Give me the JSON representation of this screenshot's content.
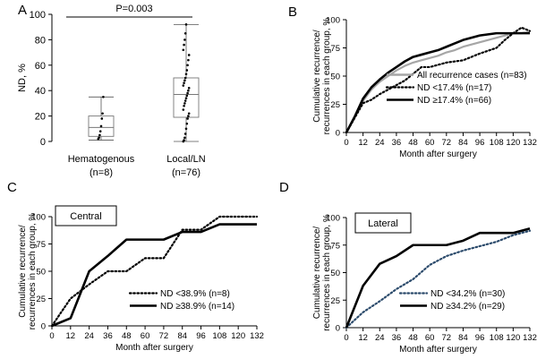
{
  "chart_data": [
    {
      "panel": "A",
      "type": "boxplot",
      "ylabel": "ND, %",
      "ylim": [
        0,
        100
      ],
      "yticks": [
        "0",
        "20",
        "40",
        "60",
        "80",
        "100"
      ],
      "annotation": "P=0.003",
      "groups": [
        {
          "label": "Hematogenous",
          "n_label": "(n=8)",
          "min": 1,
          "q1": 4,
          "median": 11,
          "q3": 20,
          "max": 35,
          "points": [
            2,
            3,
            5,
            8,
            12,
            18,
            22,
            35
          ]
        },
        {
          "label": "Local/LN",
          "n_label": "(n=76)",
          "min": 0,
          "q1": 19,
          "median": 37,
          "q3": 50,
          "max": 92,
          "points": [
            0,
            1,
            3,
            6,
            10,
            14,
            18,
            20,
            22,
            25,
            28,
            30,
            32,
            34,
            36,
            38,
            40,
            42,
            44,
            46,
            48,
            50,
            53,
            56,
            60,
            64,
            68,
            72,
            76,
            80,
            85,
            92
          ]
        }
      ]
    },
    {
      "panel": "B",
      "type": "line",
      "xlabel": "Month after surgery",
      "ylabel_lines": [
        "Cumulative recurrence/",
        "recurrences in each group, %"
      ],
      "xticks": [
        "0",
        "12",
        "24",
        "36",
        "48",
        "60",
        "72",
        "84",
        "96",
        "108",
        "120",
        "132"
      ],
      "yticks": [
        "0",
        "25",
        "50",
        "75",
        "100"
      ],
      "xlim": [
        0,
        132
      ],
      "ylim": [
        0,
        100
      ],
      "series": [
        {
          "name": "All recurrence cases (n=83)",
          "color": "#a6a6a6",
          "style": "solid",
          "x": [
            0,
            6,
            12,
            18,
            24,
            30,
            36,
            42,
            48,
            54,
            60,
            66,
            72,
            78,
            84,
            90,
            96,
            102,
            108,
            114,
            120,
            126,
            132
          ],
          "y": [
            0,
            14,
            28,
            38,
            45,
            50,
            55,
            59,
            62,
            64,
            66,
            68,
            71,
            73,
            76,
            78,
            80,
            82,
            84,
            86,
            88,
            88,
            89
          ]
        },
        {
          "name": "ND <17.4% (n=17)",
          "color": "#000000",
          "style": "dotted",
          "x": [
            0,
            12,
            18,
            24,
            30,
            36,
            42,
            48,
            54,
            60,
            66,
            72,
            84,
            96,
            108,
            114,
            120,
            126,
            132
          ],
          "y": [
            0,
            26,
            29,
            34,
            38,
            42,
            46,
            52,
            58,
            58,
            60,
            62,
            64,
            70,
            75,
            82,
            88,
            93,
            90
          ]
        },
        {
          "name": "ND ≥17.4% (n=66)",
          "color": "#000000",
          "style": "solid",
          "x": [
            0,
            6,
            12,
            18,
            24,
            30,
            36,
            42,
            48,
            54,
            60,
            66,
            72,
            78,
            84,
            90,
            96,
            102,
            108,
            114,
            120,
            126,
            132
          ],
          "y": [
            0,
            14,
            30,
            40,
            47,
            53,
            58,
            63,
            67,
            69,
            71,
            73,
            76,
            79,
            82,
            84,
            86,
            87,
            88,
            88,
            88,
            88,
            88
          ]
        }
      ]
    },
    {
      "panel": "C",
      "type": "line",
      "box_label": "Central",
      "xlabel": "Month after surgery",
      "ylabel_lines": [
        "Cumulative recurrence/",
        "recurrences in each group, %"
      ],
      "xticks": [
        "0",
        "12",
        "24",
        "36",
        "48",
        "60",
        "72",
        "84",
        "96",
        "108",
        "120",
        "132"
      ],
      "yticks": [
        "0",
        "25",
        "50",
        "75",
        "100"
      ],
      "xlim": [
        0,
        132
      ],
      "ylim": [
        0,
        100
      ],
      "series": [
        {
          "name": "ND <38.9% (n=8)",
          "color": "#000000",
          "style": "dotted",
          "x": [
            0,
            12,
            24,
            36,
            48,
            60,
            72,
            84,
            96,
            108,
            120,
            132
          ],
          "y": [
            0,
            25,
            38,
            50,
            50,
            62,
            62,
            88,
            88,
            100,
            100,
            100
          ]
        },
        {
          "name": "ND ≥38.9% (n=14)",
          "color": "#000000",
          "style": "solid",
          "x": [
            0,
            12,
            24,
            36,
            48,
            60,
            72,
            84,
            96,
            108,
            120,
            132
          ],
          "y": [
            0,
            7,
            50,
            64,
            79,
            79,
            79,
            86,
            86,
            93,
            93,
            93
          ]
        }
      ]
    },
    {
      "panel": "D",
      "type": "line",
      "box_label": "Lateral",
      "xlabel": "Month after surgery",
      "ylabel_lines": [
        "Cumulative recurrence/",
        "recurrences in each group, %"
      ],
      "xticks": [
        "0",
        "12",
        "24",
        "36",
        "48",
        "60",
        "72",
        "84",
        "96",
        "108",
        "120",
        "132"
      ],
      "yticks": [
        "0",
        "25",
        "50",
        "75",
        "100"
      ],
      "xlim": [
        0,
        132
      ],
      "ylim": [
        0,
        100
      ],
      "series": [
        {
          "name": "ND <34.2% (n=30)",
          "color": "#2b4a6b",
          "style": "dotted",
          "x": [
            0,
            12,
            24,
            36,
            48,
            60,
            72,
            84,
            96,
            108,
            120,
            132
          ],
          "y": [
            0,
            14,
            24,
            35,
            44,
            57,
            65,
            70,
            74,
            78,
            84,
            88
          ]
        },
        {
          "name": "ND ≥34.2% (n=29)",
          "color": "#000000",
          "style": "solid",
          "x": [
            0,
            12,
            24,
            36,
            48,
            60,
            72,
            84,
            96,
            108,
            120,
            132
          ],
          "y": [
            0,
            38,
            58,
            65,
            75,
            75,
            75,
            79,
            86,
            86,
            86,
            90
          ]
        }
      ]
    }
  ],
  "panel_labels": [
    "A",
    "B",
    "C",
    "D"
  ]
}
